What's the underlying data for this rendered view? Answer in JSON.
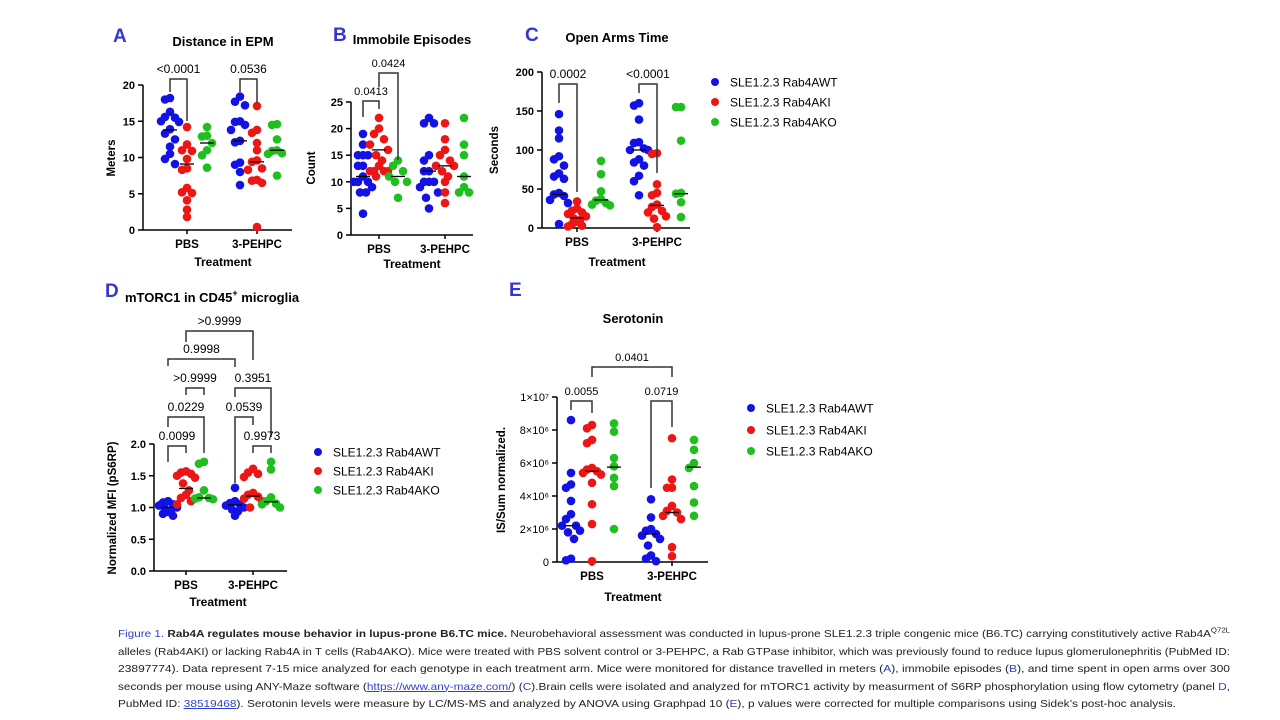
{
  "colors": {
    "wt": "#1212e6",
    "ki": "#ee1515",
    "ko": "#1fbf1f",
    "panel_letter": "#3535d0",
    "link": "#2f3fd0"
  },
  "chart_data": [
    {
      "panel": "A",
      "type": "scatter",
      "title": "Distance in EPM",
      "xlabel": "Treatment",
      "ylabel": "Meters",
      "categories": [
        "PBS",
        "3-PEHPC"
      ],
      "ylim": [
        0,
        20
      ],
      "yticks": [
        "0",
        "5",
        "10",
        "15",
        "20"
      ],
      "ytick_values": [
        0,
        5,
        10,
        15,
        20
      ],
      "series": [
        {
          "name": "SLE1.2.3 Rab4AWT",
          "color": "#1212e6",
          "groups": [
            [
              18.2,
              18,
              16.3,
              15.6,
              15.5,
              15,
              14.9,
              13.9,
              13.3,
              12.5,
              11.5,
              10.5,
              9.8,
              9.1
            ],
            [
              18.4,
              17.7,
              17.2,
              15,
              14.9,
              14.5,
              13.8,
              12.3,
              12.1,
              9.3,
              9,
              8,
              6.2
            ]
          ],
          "means": [
            13.8,
            12.3
          ]
        },
        {
          "name": "SLE1.2.3 Rab4AKI",
          "color": "#ee1515",
          "groups": [
            [
              14.2,
              11.8,
              11,
              10.9,
              9.8,
              8.5,
              8.3,
              5.8,
              5.2,
              5.1,
              4.1,
              2.8,
              1.8
            ],
            [
              17.1,
              13.8,
              13.4,
              12,
              11,
              9.6,
              9.4,
              8.5,
              8.3,
              6.9,
              6.8,
              6.5,
              0.4
            ]
          ],
          "means": [
            9.1,
            9.4
          ]
        },
        {
          "name": "SLE1.2.3 Rab4AKO",
          "color": "#1fbf1f",
          "groups": [
            [
              14.2,
              13,
              12.9,
              12,
              11,
              10.3,
              8.6
            ],
            [
              14.6,
              14.5,
              12.5,
              11,
              10.9,
              10.6,
              10.5,
              7.5
            ]
          ],
          "means": [
            12,
            11
          ]
        }
      ],
      "comparisons": [
        {
          "label": "<0.0001",
          "from": [
            0,
            0
          ],
          "to": [
            0,
            1
          ]
        },
        {
          "label": "0.0536",
          "from": [
            1,
            0
          ],
          "to": [
            1,
            1
          ]
        }
      ]
    },
    {
      "panel": "B",
      "type": "scatter",
      "title": "Immobile Episodes",
      "xlabel": "Treatment",
      "ylabel": "Count",
      "categories": [
        "PBS",
        "3-PEHPC"
      ],
      "ylim": [
        0,
        25
      ],
      "yticks": [
        "0",
        "5",
        "10",
        "15",
        "20",
        "25"
      ],
      "ytick_values": [
        0,
        5,
        10,
        15,
        20,
        25
      ],
      "series": [
        {
          "name": "SLE1.2.3 Rab4AWT",
          "color": "#1212e6",
          "groups": [
            [
              19,
              17,
              15,
              15,
              15,
              13,
              13,
              11,
              10,
              10,
              10,
              9,
              8,
              8,
              4
            ],
            [
              22,
              21,
              21,
              15,
              14,
              12,
              12,
              10,
              10,
              10,
              9,
              8,
              7,
              5
            ]
          ],
          "means": [
            11,
            12
          ]
        },
        {
          "name": "SLE1.2.3 Rab4AKI",
          "color": "#ee1515",
          "groups": [
            [
              22,
              20,
              19,
              18,
              17,
              16,
              15,
              14,
              13,
              12,
              12,
              12,
              12,
              11
            ],
            [
              21,
              18,
              16,
              15,
              14,
              13,
              13,
              12,
              11,
              10,
              8,
              6
            ]
          ],
          "means": [
            16,
            13
          ]
        },
        {
          "name": "SLE1.2.3 Rab4AKO",
          "color": "#1fbf1f",
          "groups": [
            [
              14,
              13,
              12,
              11,
              10,
              10,
              7
            ],
            [
              22,
              17,
              15,
              11,
              9,
              8,
              8
            ]
          ],
          "means": [
            11,
            11
          ]
        }
      ],
      "comparisons": [
        {
          "label": "0.0413",
          "from": [
            0,
            0
          ],
          "to": [
            0,
            1
          ]
        },
        {
          "label": "0.0424",
          "from": [
            0,
            1
          ],
          "to": [
            0,
            2
          ]
        }
      ]
    },
    {
      "panel": "C",
      "type": "scatter",
      "title": "Open Arms Time",
      "xlabel": "Treatment",
      "ylabel": "Seconds",
      "categories": [
        "PBS",
        "3-PEHPC"
      ],
      "ylim": [
        0,
        200
      ],
      "yticks": [
        "0",
        "50",
        "100",
        "150",
        "200"
      ],
      "ytick_values": [
        0,
        50,
        100,
        150,
        200
      ],
      "legend": "right",
      "series": [
        {
          "name": "SLE1.2.3 Rab4AWT",
          "color": "#1212e6",
          "groups": [
            [
              146,
              125,
              115,
              92,
              88,
              80,
              70,
              66,
              63,
              45,
              43,
              41,
              36,
              32,
              5
            ],
            [
              160,
              157,
              139,
              110,
              109,
              102,
              100,
              100,
              88,
              84,
              80,
              67,
              60,
              42
            ]
          ],
          "means": [
            43,
            100
          ]
        },
        {
          "name": "SLE1.2.3 Rab4AKI",
          "color": "#ee1515",
          "groups": [
            [
              34,
              25,
              22,
              20,
              18,
              15,
              12,
              10,
              8,
              5,
              3,
              2
            ],
            [
              96,
              95,
              56,
              45,
              42,
              30,
              27,
              22,
              20,
              15,
              12,
              1
            ]
          ],
          "means": [
            13,
            29
          ]
        },
        {
          "name": "SLE1.2.3 Rab4AKO",
          "color": "#1fbf1f",
          "groups": [
            [
              86,
              69,
              47,
              37,
              35,
              32,
              30,
              29
            ],
            [
              155,
              155,
              112,
              45,
              44,
              33,
              14
            ]
          ],
          "means": [
            36,
            44
          ]
        }
      ],
      "comparisons": [
        {
          "label": "0.0002",
          "from": [
            0,
            0
          ],
          "to": [
            0,
            1
          ]
        },
        {
          "label": "<0.0001",
          "from": [
            1,
            0
          ],
          "to": [
            1,
            1
          ]
        }
      ]
    },
    {
      "panel": "D",
      "type": "scatter",
      "title": "mTORC1 in CD45",
      "title_sup": "+",
      "title_after": " microglia",
      "xlabel": "Treatment",
      "ylabel": "Normalized MFI (pS6RP)",
      "categories": [
        "PBS",
        "3-PEHPC"
      ],
      "ylim": [
        0,
        2.0
      ],
      "yticks": [
        "0.0",
        "0.5",
        "1.0",
        "1.5",
        "2.0"
      ],
      "ytick_values": [
        0,
        0.5,
        1.0,
        1.5,
        2.0
      ],
      "legend": "right",
      "series": [
        {
          "name": "SLE1.2.3 Rab4AWT",
          "color": "#1212e6",
          "groups": [
            [
              1.1,
              1.08,
              1.05,
              1.03,
              1.0,
              0.98,
              0.95,
              0.93,
              0.9,
              0.87
            ],
            [
              1.31,
              1.1,
              1.07,
              1.05,
              1.03,
              1.0,
              0.97,
              0.94,
              0.87
            ]
          ],
          "means": [
            1.0,
            1.04
          ]
        },
        {
          "name": "SLE1.2.3 Rab4AKI",
          "color": "#ee1515",
          "groups": [
            [
              1.57,
              1.55,
              1.53,
              1.5,
              1.47,
              1.38,
              1.27,
              1.2,
              1.15,
              1.1,
              1.05
            ],
            [
              1.61,
              1.55,
              1.53,
              1.48,
              1.23,
              1.2,
              1.17,
              1.14,
              1.1,
              1.0
            ]
          ],
          "means": [
            1.3,
            1.18
          ]
        },
        {
          "name": "SLE1.2.3 Rab4AKO",
          "color": "#1fbf1f",
          "groups": [
            [
              1.72,
              1.69,
              1.27,
              1.16,
              1.15,
              1.14,
              1.13
            ],
            [
              1.72,
              1.6,
              1.16,
              1.1,
              1.06,
              1.05,
              1.0
            ]
          ],
          "means": [
            1.15,
            1.09
          ]
        }
      ],
      "comparisons": [
        {
          "label": "0.0099",
          "from": [
            0,
            0
          ],
          "to": [
            0,
            1
          ]
        },
        {
          "label": "0.0229",
          "from": [
            0,
            0
          ],
          "to": [
            0,
            2
          ]
        },
        {
          "label": ">0.9999",
          "from": [
            0,
            1
          ],
          "to": [
            0,
            2
          ]
        },
        {
          "label": "0.9998",
          "from": [
            0,
            0
          ],
          "to": [
            1,
            0
          ]
        },
        {
          "label": ">0.9999",
          "from": [
            0,
            1
          ],
          "to": [
            1,
            1
          ]
        },
        {
          "label": "0.3951",
          "from": [
            1,
            0
          ],
          "to": [
            1,
            2
          ]
        },
        {
          "label": "0.0539",
          "from": [
            1,
            0
          ],
          "to": [
            1,
            1
          ]
        },
        {
          "label": "0.9973",
          "from": [
            1,
            1
          ],
          "to": [
            1,
            2
          ]
        }
      ]
    },
    {
      "panel": "E",
      "type": "scatter",
      "title": "Serotonin",
      "xlabel": "Treatment",
      "ylabel": "IS/Sum normalized.",
      "categories": [
        "PBS",
        "3-PEHPC"
      ],
      "ylim": [
        0,
        10000000.0
      ],
      "yticks": [
        "0",
        "2×10⁶",
        "4×10⁶",
        "6×10⁶",
        "8×10⁶",
        "1×10⁷"
      ],
      "ytick_values": [
        0,
        2000000.0,
        4000000.0,
        6000000.0,
        8000000.0,
        10000000.0
      ],
      "legend": "right",
      "series": [
        {
          "name": "SLE1.2.3 Rab4AWT",
          "color": "#1212e6",
          "groups": [
            [
              8600000.0,
              5400000.0,
              4700000.0,
              4500000.0,
              3700000.0,
              2900000.0,
              2600000.0,
              2200000.0,
              2200000.0,
              1900000.0,
              1800000.0,
              1400000.0,
              200000.0,
              100000.0
            ],
            [
              3800000.0,
              2700000.0,
              2000000.0,
              1900000.0,
              1700000.0,
              1600000.0,
              1400000.0,
              1000000.0,
              400000.0,
              200000.0,
              50000.0
            ]
          ],
          "means": [
            2200000.0,
            1700000.0
          ]
        },
        {
          "name": "SLE1.2.3 Rab4AKI",
          "color": "#ee1515",
          "groups": [
            [
              8300000.0,
              8100000.0,
              7400000.0,
              7200000.0,
              5700000.0,
              5600000.0,
              5500000.0,
              5400000.0,
              5300000.0,
              4800000.0,
              3500000.0,
              2300000.0,
              50000.0
            ],
            [
              7500000.0,
              5000000.0,
              4500000.0,
              4500000.0,
              3400000.0,
              3100000.0,
              3000000.0,
              2800000.0,
              2600000.0,
              900000.0,
              350000.0
            ]
          ],
          "means": [
            5500000.0,
            3000000.0
          ]
        },
        {
          "name": "SLE1.2.3 Rab4AKO",
          "color": "#1fbf1f",
          "groups": [
            [
              8400000.0,
              7900000.0,
              6300000.0,
              5800000.0,
              5100000.0,
              4600000.0,
              2000000.0
            ],
            [
              7400000.0,
              6800000.0,
              6000000.0,
              5700000.0,
              4600000.0,
              3600000.0,
              2800000.0
            ]
          ],
          "means": [
            5750000.0,
            5750000.0
          ]
        }
      ],
      "comparisons": [
        {
          "label": "0.0055",
          "from": [
            0,
            0
          ],
          "to": [
            0,
            1
          ]
        },
        {
          "label": "0.0719",
          "from": [
            1,
            0
          ],
          "to": [
            1,
            1
          ]
        },
        {
          "label": "0.0401",
          "from": [
            0,
            1
          ],
          "to": [
            1,
            1
          ]
        }
      ]
    }
  ],
  "caption": {
    "lines": [
      [
        {
          "t": "Figure 1.",
          "s": "blue"
        },
        {
          "t": " Rab4A regulates mouse behavior in lupus-prone B6.TC mice.",
          "s": "b"
        },
        {
          "t": " Neurobehavioral assessment was conducted  in lupus-prone SLE1.2.3 triple congenic mice (B6.TC) carrying constitutively active Rab4A",
          "s": ""
        },
        {
          "t": "Q72L",
          "s": "sup"
        }
      ],
      [
        {
          "t": "alleles (Rab4AKI) or lacking Rab4A in T cells (Rab4AKO). Mice were treated  with PBS solvent control or 3-PEHPC, a Rab GTPase inhibitor, which was previously found to reduce  lupus glomerulonephritis (PubMed ID:",
          "s": ""
        }
      ],
      [
        {
          "t": "23897774). Data represent 7-15 mice analyzed for each genotype  in each treatment  arm. Mice were monitored for distance travelled in meters (",
          "s": ""
        },
        {
          "t": "A",
          "s": "blue"
        },
        {
          "t": "), immobile episodes (",
          "s": ""
        },
        {
          "t": "B",
          "s": "blue"
        },
        {
          "t": "),  and time spent in open arms over 300",
          "s": ""
        }
      ],
      [
        {
          "t": "seconds per mouse using ANY-Maze  software (",
          "s": ""
        },
        {
          "t": "https://www.any-maze.com/",
          "s": "link"
        },
        {
          "t": ")  (",
          "s": ""
        },
        {
          "t": "C",
          "s": "blue"
        },
        {
          "t": ").Brain cells were isolated and analyzed for mTORC1 activity by measurment  of S6RP phosphorylation using flow cytometry (panel ",
          "s": ""
        },
        {
          "t": "D",
          "s": "blue"
        },
        {
          "t": ",",
          "s": ""
        }
      ],
      [
        {
          "t": "PubMed ID: ",
          "s": ""
        },
        {
          "t": "38519468",
          "s": "link"
        },
        {
          "t": "). Serotonin levels were measure by LC/MS-MS  and analyzed by ANOVA  using Graphpad 10 (",
          "s": ""
        },
        {
          "t": "E",
          "s": "blue"
        },
        {
          "t": "), p values were corrected for multiple comparisons using Sidek’s post-hoc analysis.",
          "s": ""
        }
      ]
    ]
  }
}
